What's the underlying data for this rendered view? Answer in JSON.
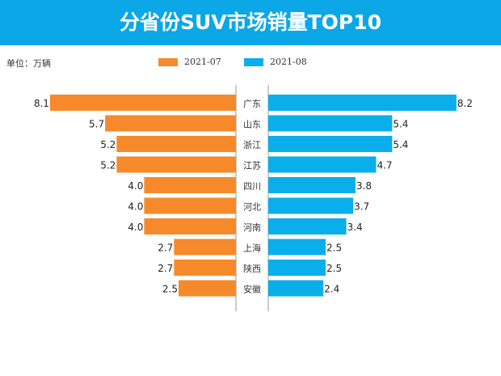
{
  "title": "分省份SUV市场销量TOP10",
  "unit_label": "单位：万辆",
  "colors": {
    "title_bg": "#0ba7e6",
    "series_0": "#f68a2a",
    "series_1": "#0aaeea"
  },
  "chart_data": {
    "type": "bar",
    "orientation": "horizontal-butterfly",
    "title": "分省份SUV市场销量TOP10",
    "unit": "万辆",
    "legend_position": "top",
    "grid": false,
    "categories": [
      "广东",
      "山东",
      "浙江",
      "江苏",
      "四川",
      "河北",
      "河南",
      "上海",
      "陕西",
      "安徽"
    ],
    "series": [
      {
        "name": "2021-07",
        "values": [
          8.1,
          5.7,
          5.2,
          5.2,
          4.0,
          4.0,
          4.0,
          2.7,
          2.7,
          2.5
        ]
      },
      {
        "name": "2021-08",
        "values": [
          8.2,
          5.4,
          5.4,
          4.7,
          3.8,
          3.7,
          3.4,
          2.5,
          2.5,
          2.4
        ]
      }
    ]
  }
}
